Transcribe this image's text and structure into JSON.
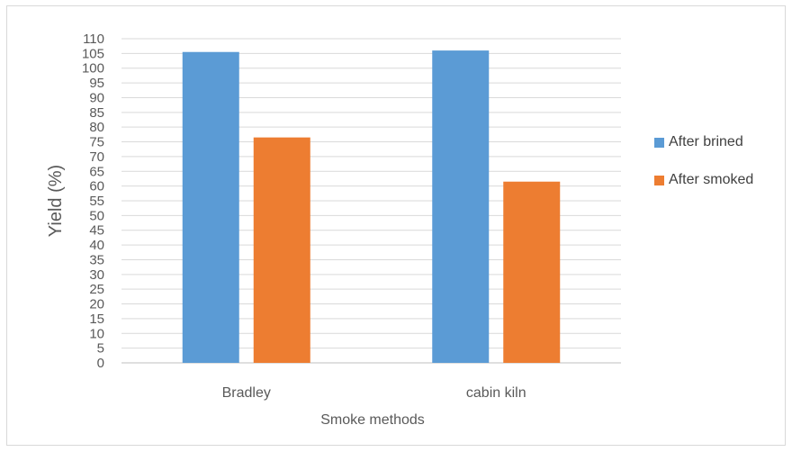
{
  "chart_data": {
    "type": "bar",
    "categories": [
      "Bradley",
      "cabin kiln"
    ],
    "series": [
      {
        "name": "After brined",
        "values": [
          105.5,
          106
        ],
        "color": "#5b9bd5"
      },
      {
        "name": "After smoked",
        "values": [
          76.5,
          61.5
        ],
        "color": "#ed7d31"
      }
    ],
    "xlabel": "Smoke methods",
    "ylabel": "Yield (%)",
    "ylim": [
      0,
      110
    ],
    "y_ticks": [
      "0",
      "5",
      "10",
      "15",
      "20",
      "25",
      "30",
      "35",
      "40",
      "45",
      "50",
      "55",
      "60",
      "65",
      "70",
      "75",
      "80",
      "85",
      "90",
      "95",
      "100",
      "105",
      "110"
    ],
    "grid": true,
    "legend_position": "right"
  }
}
